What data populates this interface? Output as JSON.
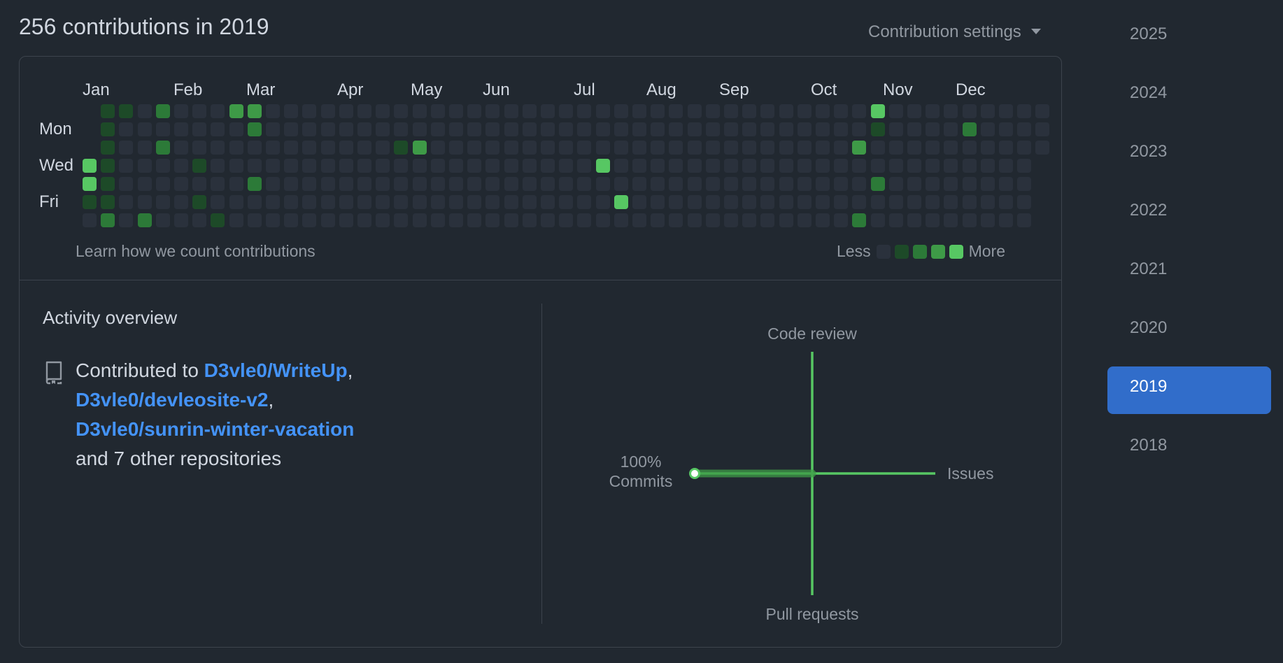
{
  "header": {
    "title": "256 contributions in 2019",
    "settings_label": "Contribution settings"
  },
  "calendar": {
    "months": [
      "Jan",
      "Feb",
      "Mar",
      "Apr",
      "May",
      "Jun",
      "Jul",
      "Aug",
      "Sep",
      "Oct",
      "Nov",
      "Dec"
    ],
    "day_labels": [
      "Mon",
      "Wed",
      "Fri"
    ],
    "learn_link": "Learn how we count contributions",
    "legend_less": "Less",
    "legend_more": "More",
    "colors": [
      "#2a313c",
      "#0e4429",
      "#006d32",
      "#26a641",
      "#39d353"
    ],
    "display_colors": [
      "#2a313c",
      "#1d4a28",
      "#2c7a38",
      "#3e9a47",
      "#57c763"
    ]
  },
  "overview": {
    "title": "Activity overview",
    "contributed_prefix": "Contributed to ",
    "repos": [
      "D3vle0/WriteUp",
      "D3vle0/devleosite-v2",
      "D3vle0/sunrin-winter-vacation"
    ],
    "others": "and 7 other repositories",
    "radar": {
      "code_review": "Code review",
      "issues": "Issues",
      "pull_requests": "Pull requests",
      "commits": "Commits",
      "commits_pct": "100%"
    }
  },
  "years": [
    "2025",
    "2024",
    "2023",
    "2022",
    "2021",
    "2020",
    "2019",
    "2018"
  ],
  "active_year": "2019"
}
